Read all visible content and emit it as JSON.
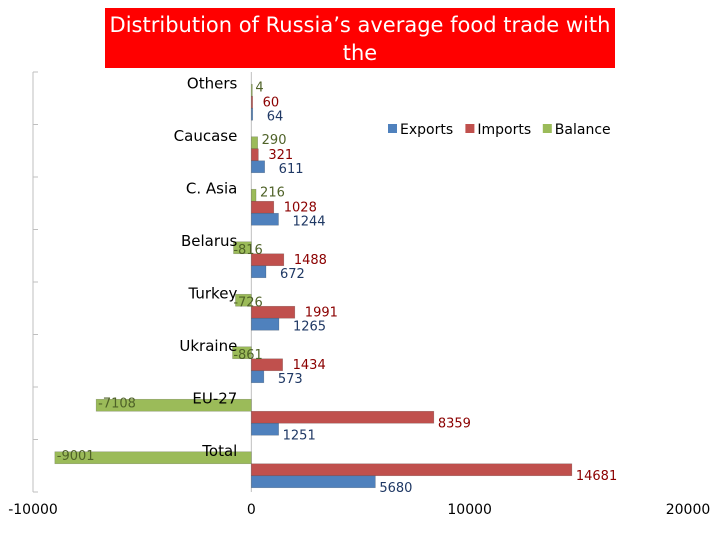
{
  "chart_data": {
    "type": "bar",
    "orientation": "horizontal",
    "title": "Distribution of Russia’s average food trade with the",
    "categories": [
      "Others",
      "Caucase",
      "C. Asia",
      "Belarus",
      "Turkey",
      "Ukraine",
      "EU-27",
      "Total"
    ],
    "series": [
      {
        "name": "Exports",
        "color": "#4f81bd",
        "values": [
          64,
          611,
          1244,
          672,
          1265,
          573,
          1251,
          5680
        ]
      },
      {
        "name": "Imports",
        "color": "#c0504d",
        "values": [
          60,
          321,
          1028,
          1488,
          1991,
          1434,
          8359,
          14681
        ]
      },
      {
        "name": "Balance",
        "color": "#9bbb59",
        "values": [
          4,
          290,
          216,
          -816,
          -726,
          -861,
          -7108,
          -9001
        ]
      }
    ],
    "data_labels": {
      "Exports": [
        "64",
        "611",
        "1244",
        "672",
        "1265",
        "573",
        "1251",
        "5680"
      ],
      "Imports": [
        "60",
        "321",
        "1028",
        "1488",
        "1991",
        "1434",
        "8359",
        "14681"
      ],
      "Balance": [
        "4",
        "290",
        "216",
        "-816",
        "-726",
        "-861",
        "-7108",
        "-9001"
      ]
    },
    "xlim": [
      -10000,
      20000
    ],
    "xticks": [
      "-10000",
      "0",
      "10000",
      "20000"
    ],
    "xticks_values": [
      -10000,
      0,
      10000,
      20000
    ],
    "legend": "top-right",
    "grid": false,
    "label_colors": {
      "Exports": "#1f3864",
      "Imports": "#8b0000",
      "Balance": "#4f6228"
    }
  }
}
